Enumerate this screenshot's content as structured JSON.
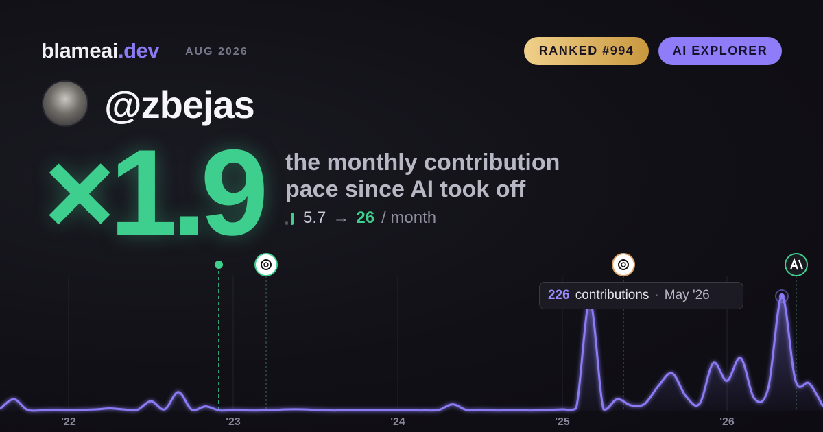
{
  "header": {
    "brand": "blameai",
    "brand_tld": ".dev",
    "period": "AUG 2026",
    "badges": [
      "RANKED #994",
      "AI EXPLORER"
    ]
  },
  "profile": {
    "handle": "@zbejas"
  },
  "hero": {
    "multiplier": "×1.9",
    "caption": "the monthly contribution pace since AI took off",
    "before": "5.7",
    "arrow": "→",
    "after": "26",
    "unit": "/ month"
  },
  "tooltip": {
    "label": "contributions",
    "separator": "·",
    "date": "May '26"
  },
  "chart_data": {
    "type": "line",
    "color": "#8b7cf6",
    "categories": [
      null,
      null,
      null,
      null,
      null,
      "'22",
      null,
      null,
      null,
      null,
      null,
      null,
      null,
      null,
      null,
      null,
      null,
      "'23",
      null,
      null,
      null,
      null,
      null,
      null,
      null,
      null,
      null,
      null,
      null,
      "'24",
      null,
      null,
      null,
      null,
      null,
      null,
      null,
      null,
      null,
      null,
      null,
      "'25",
      null,
      null,
      null,
      null,
      null,
      null,
      null,
      null,
      null,
      null,
      null,
      "'26",
      null,
      null,
      null,
      null,
      null,
      null,
      null
    ],
    "values": [
      5,
      24,
      3,
      2,
      3,
      2,
      3,
      4,
      6,
      4,
      3,
      20,
      4,
      38,
      3,
      10,
      2,
      3,
      2,
      2,
      3,
      4,
      4,
      3,
      2,
      2,
      2,
      2,
      2,
      2,
      2,
      2,
      3,
      14,
      3,
      3,
      2,
      2,
      2,
      2,
      3,
      4,
      6,
      215,
      4,
      24,
      12,
      15,
      50,
      75,
      30,
      15,
      95,
      60,
      105,
      25,
      45,
      226,
      60,
      55,
      10
    ],
    "ylim": [
      0,
      226
    ]
  }
}
